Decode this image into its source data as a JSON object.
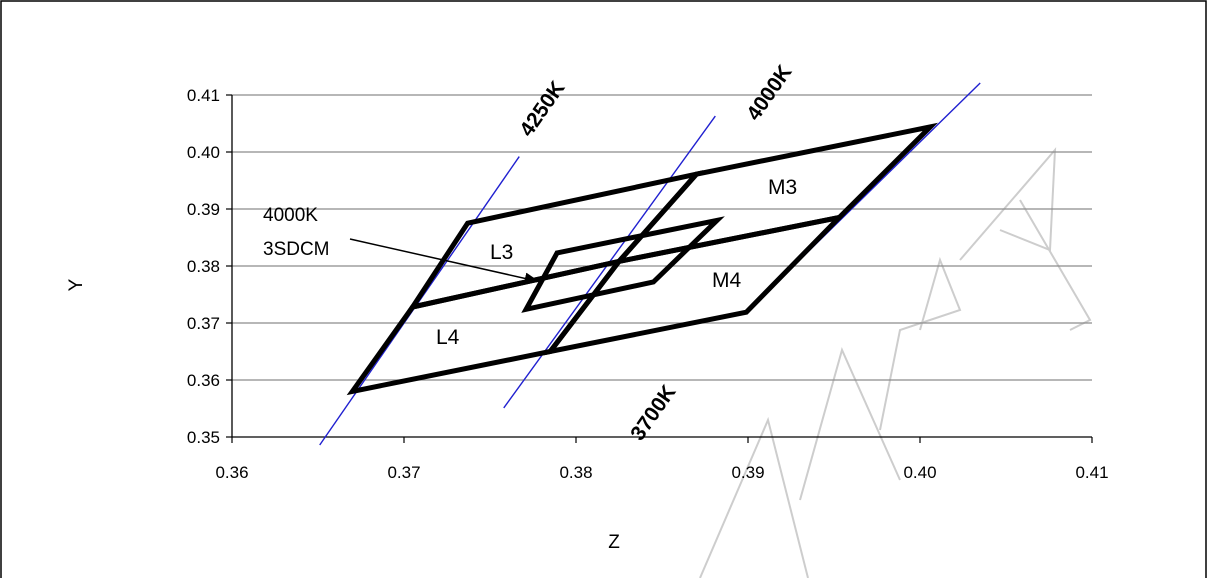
{
  "chart_data": {
    "type": "scatter",
    "xlabel": "Z",
    "ylabel": "Y",
    "xlim": [
      0.36,
      0.41
    ],
    "ylim": [
      0.35,
      0.41
    ],
    "x_ticks": [
      "0.36",
      "0.37",
      "0.38",
      "0.39",
      "0.40",
      "0.41"
    ],
    "y_ticks": [
      "0.35",
      "0.36",
      "0.37",
      "0.38",
      "0.39",
      "0.40",
      "0.41"
    ],
    "grid": "horizontal",
    "regions": [
      {
        "name": "L3",
        "points": [
          [
            0.3737,
            0.3875
          ],
          [
            0.387,
            0.3961
          ],
          [
            0.3825,
            0.3808
          ],
          [
            0.3705,
            0.3728
          ]
        ]
      },
      {
        "name": "M3",
        "points": [
          [
            0.387,
            0.3961
          ],
          [
            0.4006,
            0.4044
          ],
          [
            0.3953,
            0.3885
          ],
          [
            0.3825,
            0.3808
          ]
        ]
      },
      {
        "name": "L4",
        "points": [
          [
            0.3705,
            0.3728
          ],
          [
            0.3825,
            0.3808
          ],
          [
            0.3785,
            0.365
          ],
          [
            0.367,
            0.358
          ]
        ]
      },
      {
        "name": "M4",
        "points": [
          [
            0.3825,
            0.3808
          ],
          [
            0.3953,
            0.3885
          ],
          [
            0.3899,
            0.3719
          ],
          [
            0.3785,
            0.365
          ]
        ]
      },
      {
        "name": "4000K 3SDCM",
        "points": [
          [
            0.3789,
            0.3823
          ],
          [
            0.3882,
            0.388
          ],
          [
            0.3845,
            0.3772
          ],
          [
            0.3771,
            0.3724
          ]
        ]
      }
    ],
    "cct_lines": [
      {
        "name": "4250K",
        "points": [
          [
            0.3651,
            0.3486
          ],
          [
            0.3767,
            0.3992
          ]
        ]
      },
      {
        "name": "4000K",
        "points": [
          [
            0.3758,
            0.3551
          ],
          [
            0.3881,
            0.4063
          ]
        ]
      },
      {
        "name": "3700K",
        "points": [
          [
            0.39,
            0.3722
          ],
          [
            0.4035,
            0.4121
          ]
        ]
      }
    ],
    "annotation": {
      "lines": [
        "4000K",
        "3SDCM"
      ],
      "target": [
        0.3778,
        0.3773
      ]
    },
    "watermark": "PRELIMINARY"
  }
}
